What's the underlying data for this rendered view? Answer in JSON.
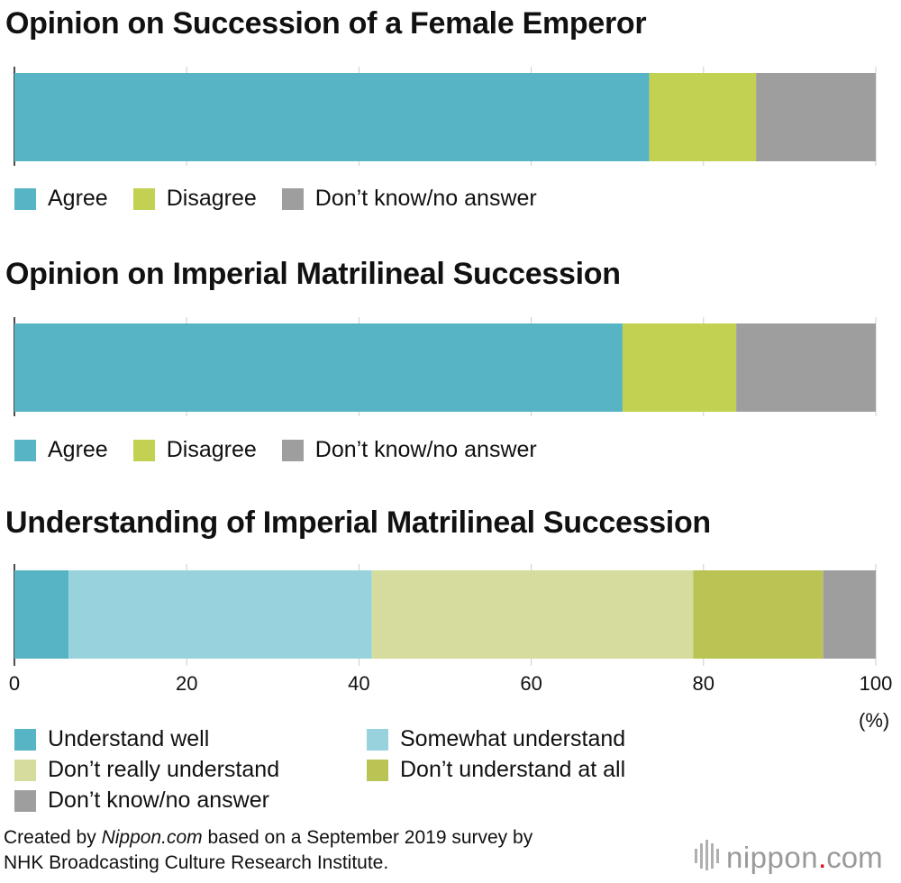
{
  "chart_data": [
    {
      "type": "bar",
      "orientation": "horizontal-stacked",
      "title": "Opinion on Succession of a Female Emperor",
      "xlim": [
        0,
        100
      ],
      "grid": true,
      "legend_position": "bottom",
      "series": [
        {
          "name": "Agree",
          "values": [
            73.7
          ],
          "color": "#56b4c4"
        },
        {
          "name": "Disagree",
          "values": [
            12.4
          ],
          "color": "#c3d152"
        },
        {
          "name": "Don’t know/no answer",
          "values": [
            13.9
          ],
          "color": "#9e9e9e"
        }
      ]
    },
    {
      "type": "bar",
      "orientation": "horizontal-stacked",
      "title": "Opinion on Imperial Matrilineal Succession",
      "xlim": [
        0,
        100
      ],
      "grid": true,
      "legend_position": "bottom",
      "series": [
        {
          "name": "Agree",
          "values": [
            70.6
          ],
          "color": "#56b4c4"
        },
        {
          "name": "Disagree",
          "values": [
            13.2
          ],
          "color": "#c3d152"
        },
        {
          "name": "Don’t know/no answer",
          "values": [
            16.2
          ],
          "color": "#9e9e9e"
        }
      ]
    },
    {
      "type": "bar",
      "orientation": "horizontal-stacked",
      "title": "Understanding of Imperial Matrilineal Succession",
      "xlim": [
        0,
        100
      ],
      "grid": true,
      "legend_position": "bottom",
      "xticks": [
        "0",
        "20",
        "40",
        "60",
        "80",
        "100"
      ],
      "xunit": "(%)",
      "series": [
        {
          "name": "Understand well",
          "values": [
            6.3
          ],
          "color": "#56b4c4"
        },
        {
          "name": "Somewhat understand",
          "values": [
            35.2
          ],
          "color": "#98d3dd"
        },
        {
          "name": "Don’t really understand",
          "values": [
            37.3
          ],
          "color": "#d5dc9d"
        },
        {
          "name": "Don’t understand at all",
          "values": [
            15.1
          ],
          "color": "#b9c455"
        },
        {
          "name": "Don’t know/no answer",
          "values": [
            6.1
          ],
          "color": "#9e9e9e"
        }
      ]
    }
  ],
  "source": {
    "prefix": "Created by ",
    "site": "Nippon.com",
    "line1_suffix": " based on a September 2019 survey by",
    "line2": "NHK Broadcasting Culture Research Institute."
  },
  "logo": {
    "name": "nippon",
    "dot": ".",
    "tld": "com",
    "mark": "bars-icon"
  }
}
